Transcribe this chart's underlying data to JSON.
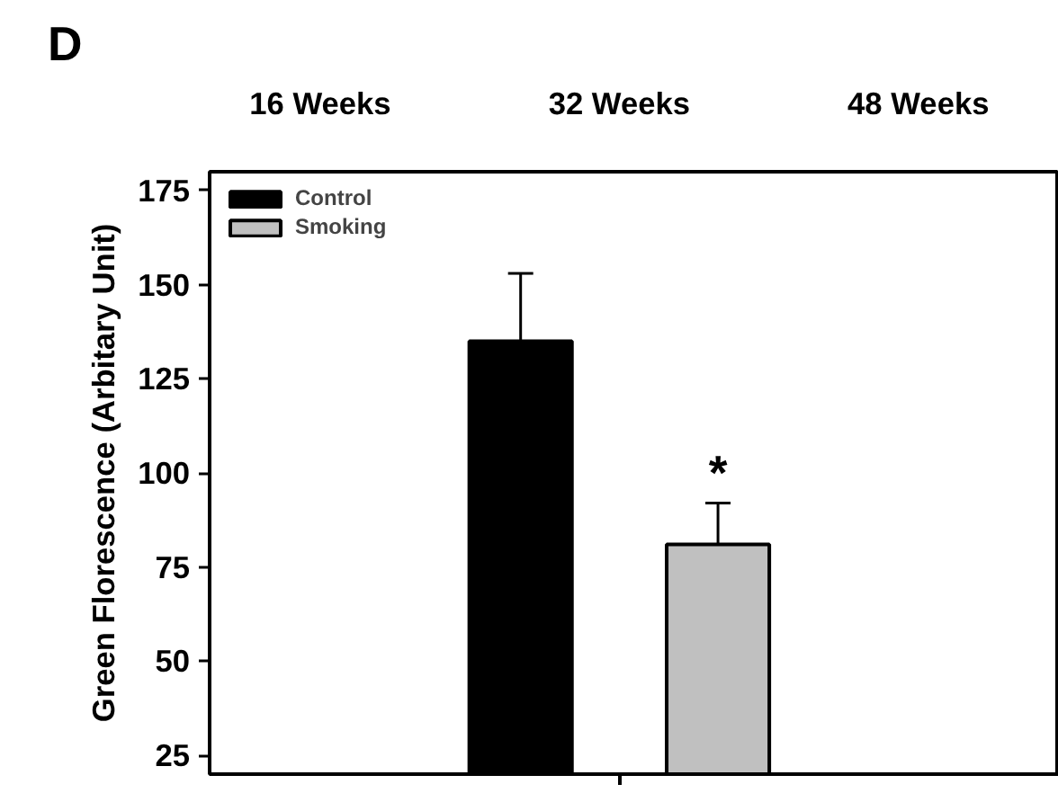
{
  "chart_data": {
    "type": "bar",
    "categories": [
      "16 Weeks",
      "32 Weeks",
      "48 Weeks"
    ],
    "ylabel": "Green Florescence (Arbitary Unit)",
    "series": [
      {
        "name": "Control",
        "color": "#000000",
        "values": [
          null,
          135,
          null
        ],
        "errors": [
          null,
          [
            135,
            153
          ],
          null
        ]
      },
      {
        "name": "Smoking",
        "color": "#c0c0c0",
        "values": [
          null,
          81,
          null
        ],
        "errors": [
          null,
          [
            81,
            92
          ],
          null
        ]
      }
    ],
    "ylim": [
      20,
      180
    ],
    "yticks": [
      25,
      50,
      75,
      100,
      125,
      150,
      175
    ],
    "annotations": [
      "D",
      "*"
    ],
    "grid": false,
    "legend": "top left"
  }
}
